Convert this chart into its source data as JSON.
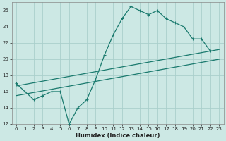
{
  "xlabel": "Humidex (Indice chaleur)",
  "bg_color": "#cce8e4",
  "grid_color": "#aacfcc",
  "line_color": "#1a7a6e",
  "xlim": [
    -0.5,
    23.5
  ],
  "ylim": [
    12,
    27
  ],
  "xticks": [
    0,
    1,
    2,
    3,
    4,
    5,
    6,
    7,
    8,
    9,
    10,
    11,
    12,
    13,
    14,
    15,
    16,
    17,
    18,
    19,
    20,
    21,
    22,
    23
  ],
  "yticks": [
    12,
    14,
    16,
    18,
    20,
    22,
    24,
    26
  ],
  "line1_x": [
    0,
    1,
    2,
    3,
    4,
    5,
    6,
    7,
    8,
    9,
    10,
    11,
    12,
    13,
    14,
    15,
    16,
    17,
    18,
    19,
    20,
    21,
    22
  ],
  "line1_y": [
    17,
    16,
    15,
    15.5,
    16,
    16,
    12,
    14,
    15,
    17.5,
    20.5,
    23,
    25,
    26.5,
    26,
    25.5,
    26,
    25,
    24.5,
    24,
    22.5,
    22.5,
    21
  ],
  "line2_x": [
    0,
    23
  ],
  "line2_y": [
    16.7,
    21.2
  ],
  "line3_x": [
    0,
    23
  ],
  "line3_y": [
    15.5,
    20.0
  ],
  "marker": "+"
}
